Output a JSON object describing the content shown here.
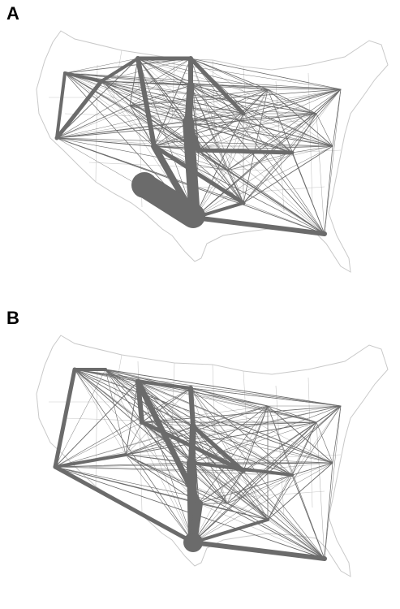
{
  "panels": [
    {
      "label": "A"
    },
    {
      "label": "B"
    }
  ],
  "colors": {
    "network": "#6b6b6b",
    "border": "#c9c9c9",
    "background": "#ffffff"
  }
}
